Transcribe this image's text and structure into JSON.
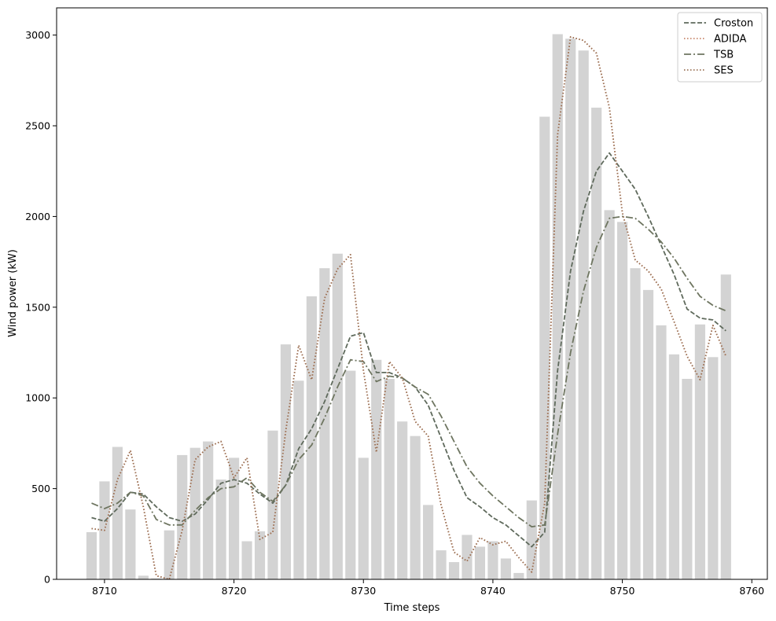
{
  "chart_data": {
    "type": "bar",
    "xlabel": "Time steps",
    "ylabel": "Wind power (kW)",
    "xlim": [
      8706.3,
      8761.2
    ],
    "ylim": [
      0,
      3150
    ],
    "xticks": [
      8710,
      8720,
      8730,
      8740,
      8750,
      8760
    ],
    "yticks": [
      0,
      500,
      1000,
      1500,
      2000,
      2500,
      3000
    ],
    "grid": false,
    "legend_position": "top-right",
    "bar_color": "#d3d3d3",
    "bars": {
      "x": [
        8709,
        8710,
        8711,
        8712,
        8713,
        8714,
        8715,
        8716,
        8717,
        8718,
        8719,
        8720,
        8721,
        8722,
        8723,
        8724,
        8725,
        8726,
        8727,
        8728,
        8729,
        8730,
        8731,
        8732,
        8733,
        8734,
        8735,
        8736,
        8737,
        8738,
        8739,
        8740,
        8741,
        8742,
        8743,
        8744,
        8745,
        8746,
        8747,
        8748,
        8749,
        8750,
        8751,
        8752,
        8753,
        8754,
        8755,
        8756,
        8757,
        8758
      ],
      "values": [
        260,
        540,
        730,
        385,
        20,
        5,
        270,
        685,
        725,
        760,
        550,
        670,
        210,
        265,
        820,
        1295,
        1095,
        1560,
        1715,
        1795,
        1150,
        670,
        1210,
        1105,
        870,
        790,
        410,
        160,
        95,
        245,
        180,
        210,
        115,
        35,
        435,
        2550,
        3005,
        2980,
        2915,
        2600,
        2035,
        1970,
        1715,
        1595,
        1400,
        1240,
        1105,
        1405,
        1225,
        1680
      ]
    },
    "series": [
      {
        "name": "Croston",
        "color": "#5f6a5c",
        "dash": "dashed",
        "x": [
          8709,
          8710,
          8711,
          8712,
          8713,
          8714,
          8715,
          8716,
          8717,
          8718,
          8719,
          8720,
          8721,
          8722,
          8723,
          8724,
          8725,
          8726,
          8727,
          8728,
          8729,
          8730,
          8731,
          8732,
          8733,
          8734,
          8735,
          8736,
          8737,
          8738,
          8739,
          8740,
          8741,
          8742,
          8743,
          8744,
          8745,
          8746,
          8747,
          8748,
          8749,
          8750,
          8751,
          8752,
          8753,
          8754,
          8755,
          8756,
          8757,
          8758
        ],
        "values": [
          340,
          320,
          390,
          480,
          470,
          400,
          340,
          320,
          360,
          440,
          530,
          550,
          530,
          470,
          420,
          520,
          720,
          830,
          980,
          1160,
          1340,
          1360,
          1140,
          1140,
          1110,
          1060,
          960,
          780,
          600,
          450,
          400,
          340,
          300,
          240,
          180,
          260,
          1150,
          1700,
          2030,
          2250,
          2350,
          2250,
          2150,
          2000,
          1840,
          1680,
          1490,
          1440,
          1430,
          1370
        ]
      },
      {
        "name": "ADIDA",
        "color": "#c8866a",
        "dash": "dotted",
        "x": [
          8709,
          8710,
          8711,
          8712,
          8713,
          8714,
          8715,
          8716,
          8717,
          8718,
          8719,
          8720,
          8721,
          8722,
          8723,
          8724,
          8725,
          8726,
          8727,
          8728,
          8729,
          8730,
          8731,
          8732,
          8733,
          8734,
          8735,
          8736,
          8737,
          8738,
          8739,
          8740,
          8741,
          8742,
          8743,
          8744,
          8745,
          8746,
          8747,
          8748,
          8749,
          8750,
          8751,
          8752,
          8753,
          8754,
          8755,
          8756,
          8757,
          8758
        ],
        "values": [
          280,
          270,
          550,
          710,
          400,
          20,
          0,
          270,
          660,
          730,
          760,
          560,
          670,
          220,
          260,
          820,
          1290,
          1100,
          1550,
          1710,
          1790,
          1150,
          700,
          1200,
          1110,
          870,
          790,
          410,
          150,
          100,
          230,
          190,
          210,
          120,
          40,
          420,
          2450,
          2990,
          2970,
          2900,
          2600,
          2020,
          1760,
          1700,
          1600,
          1420,
          1230,
          1100,
          1400,
          1230
        ]
      },
      {
        "name": "TSB",
        "color": "#6e7560",
        "dash": "dashdot",
        "x": [
          8709,
          8710,
          8711,
          8712,
          8713,
          8714,
          8715,
          8716,
          8717,
          8718,
          8719,
          8720,
          8721,
          8722,
          8723,
          8724,
          8725,
          8726,
          8727,
          8728,
          8729,
          8730,
          8731,
          8732,
          8733,
          8734,
          8735,
          8736,
          8737,
          8738,
          8739,
          8740,
          8741,
          8742,
          8743,
          8744,
          8745,
          8746,
          8747,
          8748,
          8749,
          8750,
          8751,
          8752,
          8753,
          8754,
          8755,
          8756,
          8757,
          8758
        ],
        "values": [
          420,
          390,
          420,
          480,
          460,
          330,
          300,
          300,
          380,
          450,
          500,
          510,
          560,
          480,
          430,
          520,
          660,
          740,
          890,
          1060,
          1210,
          1200,
          1090,
          1120,
          1110,
          1060,
          1020,
          900,
          760,
          620,
          530,
          460,
          400,
          340,
          290,
          300,
          800,
          1250,
          1590,
          1830,
          1990,
          2000,
          1990,
          1930,
          1860,
          1770,
          1660,
          1560,
          1510,
          1480
        ]
      },
      {
        "name": "SES",
        "color": "#9a7155",
        "dash": "dotted",
        "x": [
          8709,
          8710,
          8711,
          8712,
          8713,
          8714,
          8715,
          8716,
          8717,
          8718,
          8719,
          8720,
          8721,
          8722,
          8723,
          8724,
          8725,
          8726,
          8727,
          8728,
          8729,
          8730,
          8731,
          8732,
          8733,
          8734,
          8735,
          8736,
          8737,
          8738,
          8739,
          8740,
          8741,
          8742,
          8743,
          8744,
          8745,
          8746,
          8747,
          8748,
          8749,
          8750,
          8751,
          8752,
          8753,
          8754,
          8755,
          8756,
          8757,
          8758
        ],
        "values": [
          280,
          270,
          550,
          710,
          400,
          20,
          0,
          270,
          660,
          730,
          760,
          560,
          670,
          220,
          260,
          820,
          1290,
          1100,
          1550,
          1710,
          1790,
          1150,
          700,
          1200,
          1110,
          870,
          790,
          410,
          150,
          100,
          230,
          190,
          210,
          120,
          40,
          420,
          2450,
          2990,
          2970,
          2900,
          2600,
          2020,
          1760,
          1700,
          1600,
          1420,
          1230,
          1100,
          1400,
          1230
        ]
      }
    ]
  }
}
